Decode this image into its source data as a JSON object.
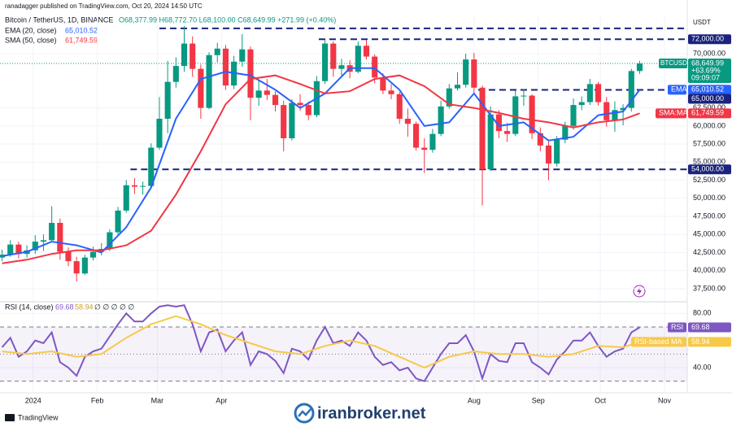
{
  "header": {
    "published": "ranadagger published on TradingView.com, Oct 20, 2024 14:50 UTC",
    "symbol_line": "Bitcoin / TetherUS, 1D, BINANCE",
    "ohlc": "O68,377.99 H68,772.70 L68,100.00 C68,649.99 +271.99 (+0.40%)",
    "ema_legend": "EMA (20, close)",
    "sma_legend": "SMA (50, close)",
    "rsi_legend": "RSI (14, close)",
    "rsi_extra": "∅ ∅ ∅ ∅ ∅",
    "currency": "USDT"
  },
  "chart_data": [
    {
      "type": "candlestick",
      "symbol": "BTCUSDT",
      "last_label": "68,649.99",
      "change": "+63.69%",
      "countdown": "09:09:07",
      "up_color": "#089981",
      "down_color": "#f23645",
      "x": [
        1,
        5,
        9,
        13,
        17,
        21,
        25,
        29,
        33,
        37,
        41,
        45,
        49,
        53,
        57,
        61,
        65,
        69,
        73,
        77,
        81,
        85,
        89,
        93,
        97,
        101,
        105,
        109,
        113,
        117,
        121,
        125,
        129,
        133,
        137,
        141,
        145,
        149,
        153,
        157,
        161,
        165,
        169,
        173,
        177,
        181,
        185,
        189,
        193,
        197,
        201,
        205,
        209,
        213,
        217,
        221,
        225,
        229,
        233,
        237,
        241,
        245,
        249,
        253,
        257,
        261,
        265,
        269,
        273,
        277,
        281,
        285,
        289,
        293,
        297,
        301,
        305,
        309
      ],
      "open": [
        41800,
        42200,
        43600,
        42300,
        42800,
        44000,
        44200,
        46600,
        42600,
        41300,
        39600,
        41800,
        42600,
        43000,
        45300,
        48300,
        51800,
        51600,
        51700,
        57000,
        61000,
        66100,
        68300,
        71400,
        67900,
        62500,
        69800,
        70700,
        65600,
        68900,
        70600,
        63900,
        64900,
        64300,
        62900,
        58300,
        63200,
        62900,
        61500,
        66200,
        71400,
        67900,
        68400,
        67500,
        71100,
        69600,
        66700,
        64900,
        64400,
        61000,
        60300,
        57000,
        56700,
        58900,
        62700,
        65200,
        65700,
        69200,
        65300,
        54000,
        61600,
        59300,
        58900,
        64100,
        64200,
        59000,
        57300,
        54800,
        58100,
        60000,
        62900,
        63300,
        65800,
        63300,
        60800,
        62200,
        62500,
        67600
      ],
      "high": [
        42900,
        44200,
        44000,
        43500,
        44900,
        45000,
        48900,
        47200,
        43200,
        41900,
        42200,
        43300,
        43800,
        45700,
        48800,
        52500,
        52800,
        52300,
        57600,
        64000,
        69000,
        69500,
        73800,
        72400,
        68500,
        70200,
        71500,
        71200,
        69700,
        72700,
        71000,
        66300,
        66500,
        64800,
        63500,
        63700,
        64400,
        63400,
        66900,
        71900,
        71700,
        69300,
        69100,
        71700,
        71900,
        69900,
        67300,
        65800,
        64700,
        62400,
        60600,
        58300,
        59600,
        63500,
        65800,
        67400,
        70000,
        70100,
        65600,
        62700,
        62200,
        60400,
        64900,
        65100,
        64400,
        59800,
        57900,
        58600,
        60600,
        63800,
        64100,
        66500,
        66100,
        64000,
        63400,
        63000,
        67900,
        69000
      ],
      "low": [
        41300,
        41900,
        41700,
        41800,
        42300,
        42700,
        43900,
        41500,
        40600,
        38500,
        39400,
        41400,
        42100,
        42700,
        45000,
        48000,
        50600,
        50500,
        51300,
        56700,
        59000,
        65300,
        67500,
        66800,
        61000,
        62300,
        68800,
        65000,
        65100,
        68200,
        60800,
        62800,
        63600,
        62000,
        56500,
        58000,
        62100,
        60800,
        61200,
        65800,
        66800,
        67000,
        66600,
        67300,
        69200,
        65900,
        64400,
        63700,
        60300,
        58500,
        56600,
        53500,
        56300,
        58600,
        62400,
        64900,
        65300,
        64500,
        49000,
        53800,
        58300,
        57800,
        58600,
        62800,
        58200,
        56500,
        52500,
        54400,
        57600,
        59500,
        62200,
        62900,
        62800,
        59900,
        59200,
        60100,
        62000,
        67200
      ],
      "close": [
        42200,
        43600,
        42300,
        42800,
        44000,
        44200,
        46600,
        42600,
        41300,
        39600,
        41800,
        42600,
        43000,
        45300,
        48300,
        51800,
        51600,
        51700,
        57000,
        61000,
        66100,
        68300,
        71400,
        67900,
        62500,
        69800,
        70700,
        65600,
        68900,
        70600,
        63900,
        64900,
        64300,
        62900,
        58300,
        63200,
        62900,
        61500,
        66200,
        71400,
        67900,
        68400,
        67500,
        71100,
        69600,
        66700,
        64900,
        64400,
        61000,
        60300,
        57000,
        56700,
        58900,
        62700,
        65200,
        65700,
        69200,
        65300,
        54000,
        61600,
        59300,
        58900,
        64100,
        64200,
        59000,
        57300,
        54800,
        58100,
        60000,
        62900,
        63300,
        65800,
        63300,
        60800,
        62200,
        62500,
        67600,
        68650
      ],
      "series": [
        {
          "name": "EMA",
          "color": "#2962ff",
          "last_label": "65,010.52",
          "x": [
            1,
            13,
            25,
            37,
            49,
            61,
            73,
            85,
            97,
            109,
            121,
            133,
            145,
            157,
            169,
            181,
            193,
            205,
            217,
            229,
            241,
            253,
            265,
            277,
            289,
            301,
            309
          ],
          "values": [
            42000,
            42600,
            44000,
            43500,
            42500,
            46000,
            51500,
            61000,
            66500,
            67500,
            67000,
            65000,
            62500,
            64500,
            68000,
            68000,
            65000,
            60000,
            60500,
            64500,
            60000,
            60500,
            58000,
            58500,
            61500,
            62000,
            65010.52
          ]
        },
        {
          "name": "SMA:MA",
          "color": "#f23645",
          "last_label": "61,749.59",
          "x": [
            1,
            13,
            25,
            37,
            49,
            61,
            73,
            85,
            97,
            109,
            121,
            133,
            145,
            157,
            169,
            181,
            193,
            205,
            217,
            229,
            241,
            253,
            265,
            277,
            289,
            301,
            309
          ],
          "values": [
            41000,
            41500,
            42300,
            42800,
            42800,
            43500,
            45500,
            50500,
            56500,
            63000,
            66500,
            67000,
            65800,
            64500,
            64800,
            66500,
            67000,
            65500,
            63000,
            62500,
            61800,
            61000,
            60500,
            59800,
            60500,
            60900,
            61749.59
          ]
        }
      ],
      "levels": [
        {
          "value": 73500,
          "from": 77
        },
        {
          "value": 72000,
          "label": "72,000.00",
          "from": 154
        },
        {
          "value": 65000,
          "label": "65,000.00",
          "from": 231
        },
        {
          "value": 54000,
          "label": "54,000.00",
          "from": 63
        }
      ],
      "xlim": [
        0,
        332
      ],
      "xticks": [
        {
          "value": 16,
          "label": "2024"
        },
        {
          "value": 47,
          "label": "Feb"
        },
        {
          "value": 76,
          "label": "Mar"
        },
        {
          "value": 107,
          "label": "Apr"
        },
        {
          "value": 229,
          "label": "Aug"
        },
        {
          "value": 260,
          "label": "Sep"
        },
        {
          "value": 290,
          "label": "Oct"
        },
        {
          "value": 321,
          "label": "Nov"
        }
      ],
      "ylim": [
        35800,
        75400
      ],
      "yticks": [
        {
          "value": 37500,
          "label": "37,500.00"
        },
        {
          "value": 40000,
          "label": "40,000.00"
        },
        {
          "value": 42500,
          "label": "42,500.00"
        },
        {
          "value": 45000,
          "label": "45,000.00"
        },
        {
          "value": 47500,
          "label": "47,500.00"
        },
        {
          "value": 50000,
          "label": "50,000.00"
        },
        {
          "value": 52500,
          "label": "52,500.00"
        },
        {
          "value": 55000,
          "label": "55,000.00"
        },
        {
          "value": 57500,
          "label": "57,500.00"
        },
        {
          "value": 60000,
          "label": "60,000.00"
        },
        {
          "value": 62500,
          "label": "62,500.00"
        },
        {
          "value": 70000,
          "label": "70,000.00"
        }
      ],
      "grid": true
    },
    {
      "type": "line",
      "series": [
        {
          "name": "RSI",
          "color": "#7e57c2",
          "last_label": "69.68",
          "x": [
            1,
            5,
            9,
            13,
            17,
            21,
            25,
            29,
            33,
            37,
            41,
            45,
            49,
            53,
            57,
            61,
            65,
            69,
            73,
            77,
            81,
            85,
            89,
            93,
            97,
            101,
            105,
            109,
            113,
            117,
            121,
            125,
            129,
            133,
            137,
            141,
            145,
            149,
            153,
            157,
            161,
            165,
            169,
            173,
            177,
            181,
            185,
            189,
            193,
            197,
            201,
            205,
            209,
            213,
            217,
            221,
            225,
            229,
            233,
            237,
            241,
            245,
            249,
            253,
            257,
            261,
            265,
            269,
            273,
            277,
            281,
            285,
            289,
            293,
            297,
            301,
            305,
            309
          ],
          "values": [
            55,
            62,
            48,
            52,
            60,
            58,
            66,
            44,
            40,
            34,
            48,
            52,
            54,
            63,
            72,
            80,
            74,
            74,
            80,
            85,
            86,
            85,
            86,
            72,
            52,
            66,
            68,
            52,
            60,
            66,
            42,
            52,
            50,
            45,
            36,
            54,
            52,
            46,
            60,
            70,
            58,
            60,
            56,
            66,
            60,
            48,
            42,
            44,
            38,
            40,
            32,
            30,
            40,
            50,
            58,
            58,
            64,
            52,
            32,
            50,
            45,
            44,
            58,
            58,
            44,
            40,
            35,
            46,
            52,
            60,
            60,
            66,
            56,
            48,
            52,
            54,
            66,
            69.68
          ]
        },
        {
          "name": "RSI-based MA",
          "color": "#f7c948",
          "last_label": "58.94",
          "x": [
            1,
            13,
            25,
            37,
            49,
            61,
            73,
            85,
            97,
            109,
            121,
            133,
            145,
            157,
            169,
            181,
            193,
            205,
            217,
            229,
            241,
            253,
            265,
            277,
            289,
            301,
            309
          ],
          "values": [
            52,
            50,
            52,
            48,
            50,
            62,
            72,
            78,
            72,
            64,
            58,
            52,
            50,
            56,
            60,
            56,
            48,
            40,
            48,
            52,
            50,
            50,
            48,
            50,
            56,
            55,
            58.94
          ]
        }
      ],
      "levels": [
        70,
        50,
        30
      ],
      "xlim": [
        0,
        332
      ],
      "ylim": [
        22,
        88
      ],
      "yticks": [
        {
          "value": 40,
          "label": "40.00"
        },
        {
          "value": 80,
          "label": "80.00"
        }
      ],
      "grid": true
    }
  ],
  "footer": {
    "brand": "TradingView",
    "watermark": "iranbroker.net"
  }
}
